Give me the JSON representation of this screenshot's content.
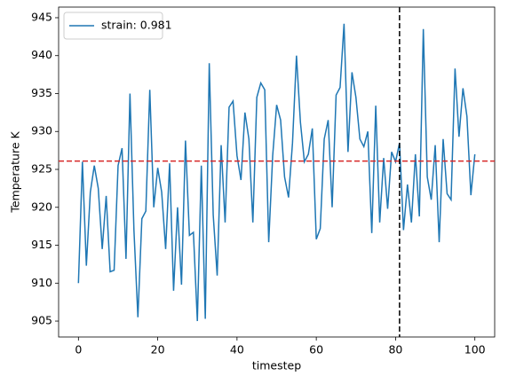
{
  "chart_data": {
    "type": "line",
    "xlabel": "timestep",
    "ylabel": "Temperature K",
    "x": [
      0,
      1,
      2,
      3,
      4,
      5,
      6,
      7,
      8,
      9,
      10,
      11,
      12,
      13,
      14,
      15,
      16,
      17,
      18,
      19,
      20,
      21,
      22,
      23,
      24,
      25,
      26,
      27,
      28,
      29,
      30,
      31,
      32,
      33,
      34,
      35,
      36,
      37,
      38,
      39,
      40,
      41,
      42,
      43,
      44,
      45,
      46,
      47,
      48,
      49,
      50,
      51,
      52,
      53,
      54,
      55,
      56,
      57,
      58,
      59,
      60,
      61,
      62,
      63,
      64,
      65,
      66,
      67,
      68,
      69,
      70,
      71,
      72,
      73,
      74,
      75,
      76,
      77,
      78,
      79,
      80,
      81,
      82,
      83,
      84,
      85,
      86,
      87,
      88,
      89,
      90,
      91,
      92,
      93,
      94,
      95,
      96,
      97,
      98,
      99,
      100
    ],
    "series": [
      {
        "name": "strain: 0.981",
        "color": "#1f77b4",
        "values": [
          910,
          926,
          912.3,
          922,
          925.5,
          922.5,
          914.5,
          921.5,
          911.5,
          911.7,
          925.5,
          927.8,
          913.2,
          935,
          917,
          905.5,
          918.5,
          919.5,
          935.5,
          920,
          925.2,
          922,
          914.5,
          925.8,
          909,
          920,
          909.8,
          928.8,
          916.3,
          916.7,
          905,
          925.5,
          905.3,
          939,
          919,
          911,
          928.2,
          918,
          933.2,
          934,
          926.8,
          923.6,
          932.5,
          929,
          918,
          934.5,
          936.4,
          935.5,
          915.4,
          926.8,
          933.5,
          931.5,
          924,
          921.3,
          928.5,
          940,
          931.2,
          926,
          927,
          930.4,
          915.8,
          917.2,
          929,
          931.5,
          920,
          934.8,
          935.8,
          944.2,
          927.3,
          937.8,
          934.5,
          929,
          928,
          930,
          916.6,
          933.4,
          918,
          926.5,
          919.8,
          927.3,
          926,
          928.5,
          917,
          923,
          918,
          927,
          918.8,
          943.5,
          924,
          921,
          928.2,
          915.4,
          929,
          921.8,
          921,
          938.3,
          929.3,
          935.7,
          932,
          921.6,
          927
        ]
      }
    ],
    "hline": {
      "value": 926.1,
      "color": "#d62728"
    },
    "vline": {
      "value": 81,
      "color": "#000000"
    },
    "xlim": [
      -5,
      105
    ],
    "xticks": [
      0,
      20,
      40,
      60,
      80,
      100
    ],
    "ylim": [
      902.9,
      946.4
    ],
    "yticks": [
      905,
      910,
      915,
      920,
      925,
      930,
      935,
      940,
      945
    ],
    "legend": "upper left"
  }
}
